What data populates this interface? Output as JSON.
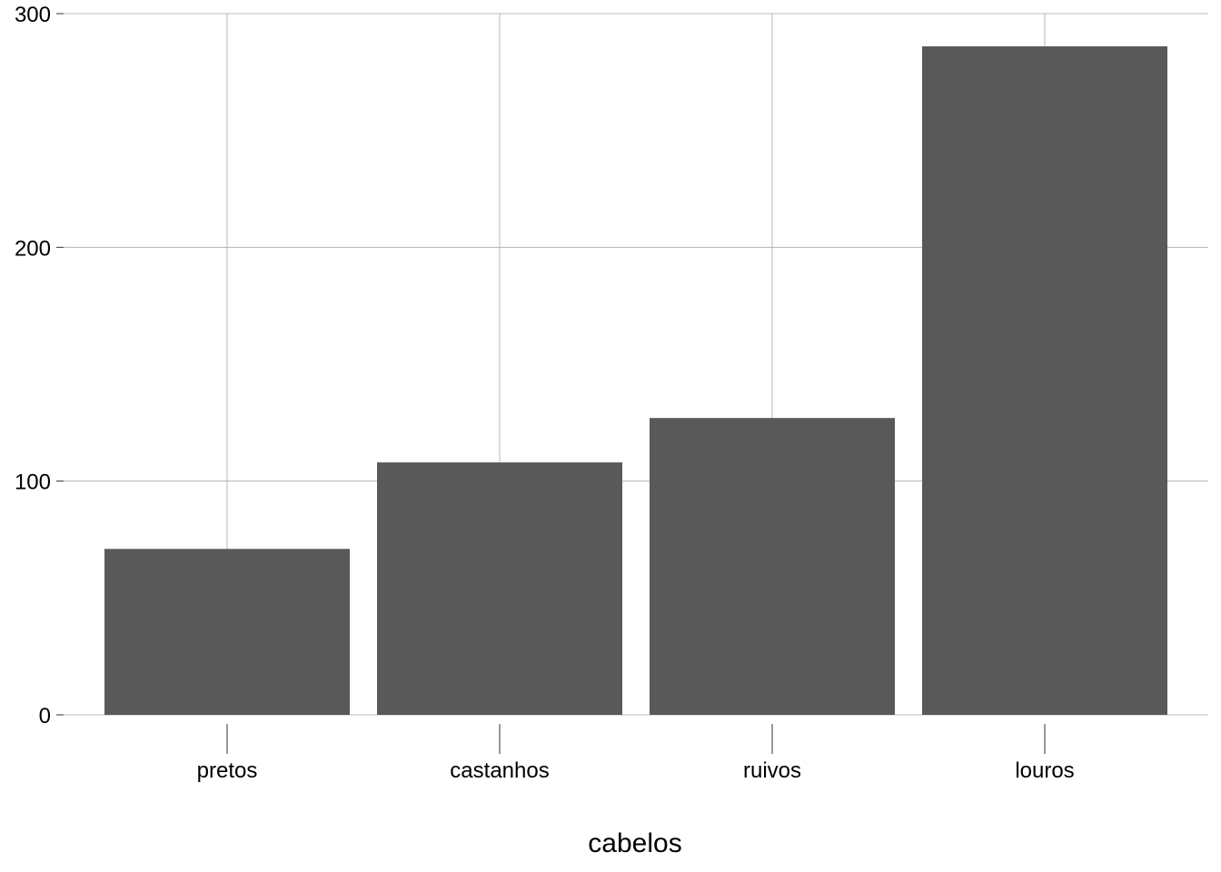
{
  "chart_data": {
    "type": "bar",
    "categories": [
      "pretos",
      "castanhos",
      "ruivos",
      "louros"
    ],
    "values": [
      71,
      108,
      127,
      286
    ],
    "title": "",
    "xlabel": "cabelos",
    "ylabel": "",
    "ylim": [
      0,
      300
    ],
    "yticks": [
      0,
      100,
      200,
      300
    ],
    "grid": true,
    "legend": "none",
    "colors": {
      "bar": "#595959",
      "grid": "#a9a9a9",
      "text": "#000000"
    }
  }
}
